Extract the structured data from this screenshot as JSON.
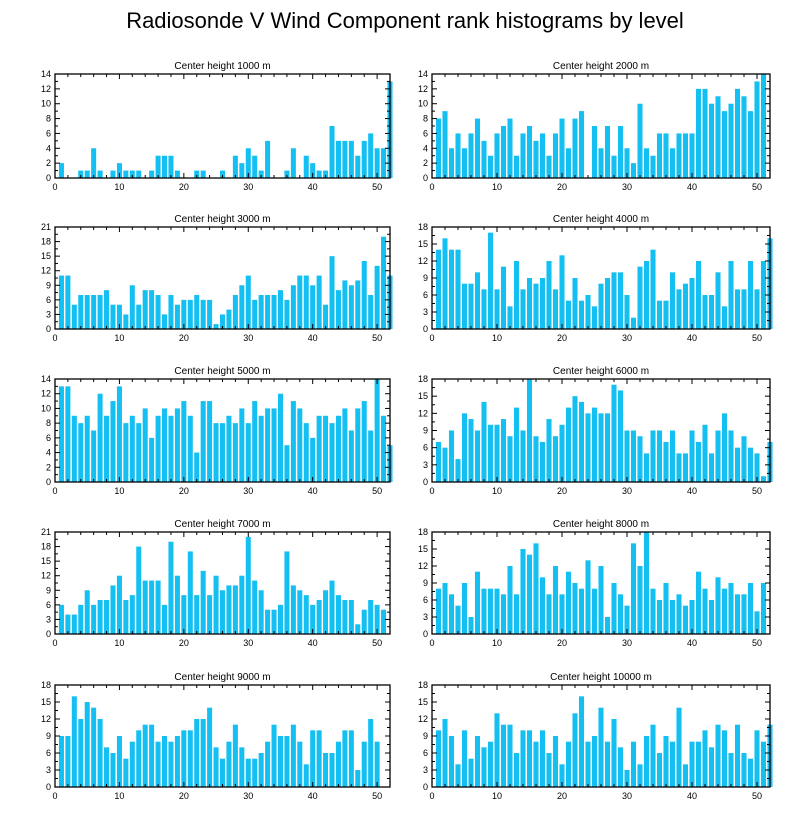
{
  "title": "Radiosonde V Wind Component rank histograms by level",
  "bar_color": "#14bff2",
  "chart_data": [
    {
      "type": "bar",
      "title": "Center height 1000 m",
      "x_start": 1,
      "xlim": [
        0,
        52
      ],
      "ylim": [
        0,
        14
      ],
      "xticks": [
        0,
        10,
        20,
        30,
        40,
        50
      ],
      "yticks": [
        0,
        2,
        4,
        6,
        8,
        10,
        12,
        14
      ],
      "values": [
        2,
        0,
        0,
        1,
        1,
        4,
        1,
        0,
        1,
        2,
        1,
        1,
        1,
        0,
        1,
        3,
        3,
        3,
        1,
        0,
        0,
        1,
        1,
        0,
        0,
        1,
        0,
        3,
        2,
        4,
        3,
        1,
        5,
        0,
        0,
        1,
        4,
        0,
        3,
        2,
        1,
        1,
        7,
        5,
        5,
        5,
        3,
        5,
        6,
        4,
        4,
        13
      ]
    },
    {
      "type": "bar",
      "title": "Center height 2000 m",
      "x_start": 1,
      "xlim": [
        0,
        52
      ],
      "ylim": [
        0,
        14
      ],
      "xticks": [
        0,
        10,
        20,
        30,
        40,
        50
      ],
      "yticks": [
        0,
        2,
        4,
        6,
        8,
        10,
        12,
        14
      ],
      "values": [
        8,
        9,
        4,
        6,
        4,
        6,
        8,
        5,
        3,
        6,
        7,
        8,
        3,
        6,
        7,
        5,
        6,
        3,
        6,
        8,
        4,
        8,
        9,
        0,
        7,
        4,
        7,
        3,
        7,
        4,
        2,
        10,
        4,
        3,
        6,
        6,
        4,
        6,
        6,
        6,
        12,
        12,
        10,
        11,
        9,
        10,
        12,
        11,
        9,
        13,
        14
      ]
    },
    {
      "type": "bar",
      "title": "Center height 3000 m",
      "x_start": 1,
      "xlim": [
        0,
        52
      ],
      "ylim": [
        0,
        21
      ],
      "xticks": [
        0,
        10,
        20,
        30,
        40,
        50
      ],
      "yticks": [
        0,
        3,
        6,
        9,
        12,
        15,
        18,
        21
      ],
      "values": [
        11,
        11,
        5,
        7,
        7,
        7,
        7,
        8,
        5,
        5,
        3,
        9,
        5,
        8,
        8,
        7,
        3,
        7,
        5,
        6,
        6,
        7,
        6,
        6,
        1,
        3,
        4,
        7,
        9,
        11,
        6,
        7,
        7,
        7,
        8,
        6,
        9,
        11,
        11,
        9,
        11,
        5,
        15,
        8,
        10,
        9,
        10,
        14,
        7,
        13,
        19,
        11
      ]
    },
    {
      "type": "bar",
      "title": "Center height 4000 m",
      "x_start": 1,
      "xlim": [
        0,
        52
      ],
      "ylim": [
        0,
        18
      ],
      "xticks": [
        0,
        10,
        20,
        30,
        40,
        50
      ],
      "yticks": [
        0,
        3,
        6,
        9,
        12,
        15,
        18
      ],
      "values": [
        14,
        16,
        14,
        14,
        8,
        8,
        10,
        7,
        17,
        7,
        11,
        4,
        12,
        7,
        9,
        8,
        9,
        12,
        7,
        13,
        5,
        9,
        5,
        6,
        4,
        8,
        9,
        10,
        10,
        6,
        2,
        11,
        12,
        14,
        5,
        5,
        10,
        7,
        8,
        9,
        12,
        6,
        6,
        10,
        4,
        12,
        7,
        7,
        12,
        7,
        12,
        16
      ]
    },
    {
      "type": "bar",
      "title": "Center height 5000 m",
      "x_start": 1,
      "xlim": [
        0,
        52
      ],
      "ylim": [
        0,
        14
      ],
      "xticks": [
        0,
        10,
        20,
        30,
        40,
        50
      ],
      "yticks": [
        0,
        2,
        4,
        6,
        8,
        10,
        12,
        14
      ],
      "values": [
        13,
        13,
        9,
        8,
        9,
        7,
        12,
        9,
        11,
        13,
        8,
        9,
        8,
        10,
        6,
        9,
        10,
        9,
        10,
        11,
        9,
        4,
        11,
        11,
        8,
        8,
        9,
        8,
        10,
        8,
        11,
        9,
        10,
        10,
        12,
        5,
        11,
        10,
        8,
        6,
        9,
        9,
        8,
        9,
        10,
        7,
        10,
        11,
        7,
        14,
        9,
        5
      ]
    },
    {
      "type": "bar",
      "title": "Center height 6000 m",
      "x_start": 1,
      "xlim": [
        0,
        52
      ],
      "ylim": [
        0,
        18
      ],
      "xticks": [
        0,
        10,
        20,
        30,
        40,
        50
      ],
      "yticks": [
        0,
        3,
        6,
        9,
        12,
        15,
        18
      ],
      "values": [
        7,
        6,
        9,
        4,
        12,
        11,
        9,
        14,
        10,
        10,
        11,
        8,
        13,
        9,
        18,
        8,
        7,
        11,
        8,
        10,
        13,
        15,
        14,
        12,
        13,
        12,
        12,
        17,
        16,
        9,
        9,
        8,
        5,
        9,
        9,
        7,
        9,
        5,
        5,
        9,
        7,
        10,
        5,
        9,
        12,
        9,
        6,
        8,
        6,
        5,
        1,
        7
      ]
    },
    {
      "type": "bar",
      "title": "Center height 7000 m",
      "x_start": 1,
      "xlim": [
        0,
        52
      ],
      "ylim": [
        0,
        21
      ],
      "xticks": [
        0,
        10,
        20,
        30,
        40,
        50
      ],
      "yticks": [
        0,
        3,
        6,
        9,
        12,
        15,
        18,
        21
      ],
      "values": [
        6,
        4,
        4,
        6,
        9,
        6,
        7,
        7,
        10,
        12,
        7,
        8,
        18,
        11,
        11,
        11,
        6,
        19,
        12,
        8,
        17,
        8,
        13,
        8,
        12,
        9,
        10,
        10,
        12,
        20,
        11,
        9,
        5,
        5,
        6,
        17,
        10,
        9,
        8,
        6,
        7,
        9,
        11,
        8,
        7,
        7,
        2,
        5,
        7,
        6,
        5
      ]
    },
    {
      "type": "bar",
      "title": "Center height 8000 m",
      "x_start": 1,
      "xlim": [
        0,
        52
      ],
      "ylim": [
        0,
        18
      ],
      "xticks": [
        0,
        10,
        20,
        30,
        40,
        50
      ],
      "yticks": [
        0,
        3,
        6,
        9,
        12,
        15,
        18
      ],
      "values": [
        8,
        9,
        7,
        5,
        9,
        3,
        11,
        8,
        8,
        8,
        7,
        12,
        7,
        15,
        14,
        16,
        10,
        7,
        12,
        7,
        11,
        9,
        8,
        13,
        8,
        12,
        3,
        9,
        7,
        5,
        16,
        12,
        18,
        8,
        6,
        9,
        6,
        7,
        5,
        6,
        11,
        8,
        6,
        10,
        8,
        9,
        7,
        7,
        9,
        4,
        9
      ]
    },
    {
      "type": "bar",
      "title": "Center height 9000 m",
      "x_start": 1,
      "xlim": [
        0,
        52
      ],
      "ylim": [
        0,
        18
      ],
      "xticks": [
        0,
        10,
        20,
        30,
        40,
        50
      ],
      "yticks": [
        0,
        3,
        6,
        9,
        12,
        15,
        18
      ],
      "values": [
        9,
        9,
        16,
        12,
        15,
        14,
        12,
        7,
        6,
        9,
        5,
        8,
        10,
        11,
        11,
        8,
        9,
        8,
        9,
        10,
        10,
        12,
        12,
        14,
        7,
        5,
        8,
        11,
        7,
        5,
        5,
        6,
        8,
        11,
        9,
        9,
        11,
        8,
        4,
        10,
        10,
        6,
        6,
        8,
        10,
        10,
        3,
        8,
        12,
        8
      ]
    },
    {
      "type": "bar",
      "title": "Center height 10000 m",
      "x_start": 1,
      "xlim": [
        0,
        52
      ],
      "ylim": [
        0,
        18
      ],
      "xticks": [
        0,
        10,
        20,
        30,
        40,
        50
      ],
      "yticks": [
        0,
        3,
        6,
        9,
        12,
        15,
        18
      ],
      "values": [
        10,
        12,
        9,
        4,
        10,
        5,
        9,
        7,
        8,
        13,
        11,
        11,
        6,
        10,
        10,
        8,
        10,
        6,
        9,
        4,
        8,
        13,
        16,
        8,
        9,
        14,
        8,
        12,
        7,
        3,
        8,
        4,
        9,
        11,
        6,
        9,
        8,
        14,
        4,
        8,
        8,
        10,
        7,
        11,
        10,
        6,
        11,
        6,
        5,
        10,
        8,
        11
      ]
    }
  ]
}
